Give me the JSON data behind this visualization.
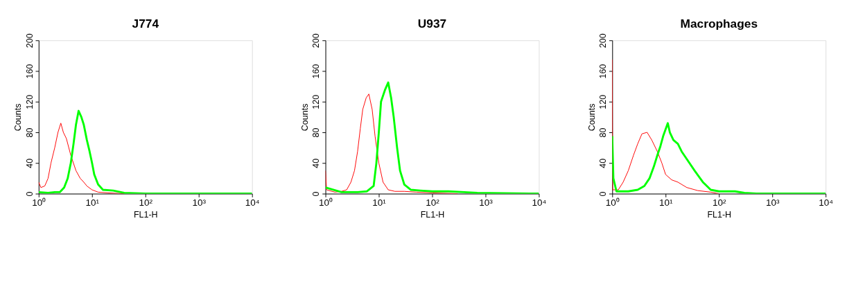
{
  "chart_data": [
    {
      "type": "line",
      "title": "J774",
      "xlabel": "FL1-H",
      "ylabel": "Counts",
      "log": "x",
      "grid": false,
      "marker": "none",
      "line_style": "solid",
      "xlim": [
        1,
        10000
      ],
      "xticks": [
        {
          "value": 1,
          "label": "10⁰"
        },
        {
          "value": 10,
          "label": "10¹"
        },
        {
          "value": 100,
          "label": "10²"
        },
        {
          "value": 1000,
          "label": "10³"
        },
        {
          "value": 10000,
          "label": "10⁴"
        }
      ],
      "ylim": [
        0,
        200
      ],
      "yticks": [
        0,
        40,
        80,
        120,
        160,
        200
      ],
      "series": [
        {
          "color": "#ff0000",
          "x": [
            1,
            1.1,
            1.3,
            1.5,
            1.7,
            2,
            2.3,
            2.6,
            2.9,
            3.3,
            4,
            5,
            6,
            7,
            8,
            10,
            13,
            20,
            40
          ],
          "values": [
            15,
            8,
            10,
            20,
            40,
            60,
            80,
            92,
            80,
            72,
            50,
            30,
            20,
            15,
            10,
            5,
            2,
            1,
            0
          ]
        },
        {
          "color": "#00ff00",
          "x": [
            1,
            1.5,
            2,
            2.5,
            3,
            3.5,
            4,
            4.5,
            5,
            5.6,
            6.3,
            7,
            8,
            9,
            10,
            11,
            13,
            16,
            25,
            40,
            100,
            1000,
            10000
          ],
          "values": [
            2,
            1,
            2,
            2,
            8,
            20,
            40,
            65,
            90,
            108,
            100,
            90,
            70,
            55,
            40,
            25,
            12,
            5,
            4,
            1,
            0,
            0,
            0
          ]
        }
      ]
    },
    {
      "type": "line",
      "title": "U937",
      "xlabel": "FL1-H",
      "ylabel": "Counts",
      "log": "x",
      "grid": false,
      "marker": "none",
      "line_style": "solid",
      "xlim": [
        1,
        10000
      ],
      "xticks": [
        {
          "value": 1,
          "label": "10⁰"
        },
        {
          "value": 10,
          "label": "10¹"
        },
        {
          "value": 100,
          "label": "10²"
        },
        {
          "value": 1000,
          "label": "10³"
        },
        {
          "value": 10000,
          "label": "10⁴"
        }
      ],
      "ylim": [
        0,
        200
      ],
      "yticks": [
        0,
        40,
        80,
        120,
        160,
        200
      ],
      "series": [
        {
          "color": "#ff0000",
          "x": [
            1,
            1.05,
            1.5,
            2,
            2.5,
            3,
            3.5,
            4,
            4.5,
            5,
            5.8,
            6.5,
            7.5,
            8.5,
            10,
            12,
            15,
            20,
            30,
            50,
            100,
            300
          ],
          "values": [
            30,
            5,
            2,
            3,
            5,
            15,
            30,
            55,
            85,
            110,
            125,
            130,
            110,
            75,
            40,
            15,
            5,
            3,
            3,
            2,
            1,
            0
          ]
        },
        {
          "color": "#00ff00",
          "x": [
            1,
            2,
            4,
            6,
            8,
            9,
            10,
            11,
            13,
            15,
            17,
            19,
            22,
            25,
            30,
            40,
            60,
            100,
            200,
            400,
            700,
            10000
          ],
          "values": [
            8,
            2,
            2,
            3,
            10,
            40,
            80,
            120,
            135,
            145,
            125,
            100,
            60,
            30,
            12,
            5,
            4,
            3,
            3,
            2,
            1,
            0
          ]
        }
      ]
    },
    {
      "type": "line",
      "title": "Macrophages",
      "xlabel": "FL1-H",
      "ylabel": "Counts",
      "log": "x",
      "grid": false,
      "marker": "none",
      "line_style": "solid",
      "xlim": [
        1,
        10000
      ],
      "xticks": [
        {
          "value": 1,
          "label": "10⁰"
        },
        {
          "value": 10,
          "label": "10¹"
        },
        {
          "value": 100,
          "label": "10²"
        },
        {
          "value": 1000,
          "label": "10³"
        },
        {
          "value": 10000,
          "label": "10⁴"
        }
      ],
      "ylim": [
        0,
        200
      ],
      "yticks": [
        0,
        40,
        80,
        120,
        160,
        200
      ],
      "series": [
        {
          "color": "#ff0000",
          "x": [
            1,
            1.02,
            1.3,
            1.6,
            2,
            2.5,
            3,
            3.6,
            4.5,
            5.5,
            7,
            8.5,
            10,
            13,
            17,
            25,
            40,
            70,
            100
          ],
          "values": [
            175,
            5,
            5,
            15,
            30,
            50,
            65,
            78,
            80,
            70,
            55,
            40,
            25,
            18,
            15,
            8,
            4,
            2,
            0
          ]
        },
        {
          "color": "#00ff00",
          "x": [
            1,
            1.05,
            1.2,
            2,
            3,
            4,
            5,
            6,
            7,
            8,
            9,
            11,
            12,
            14,
            17,
            20,
            25,
            35,
            50,
            70,
            100,
            200,
            300,
            500,
            10000
          ],
          "values": [
            75,
            20,
            3,
            3,
            5,
            10,
            20,
            35,
            50,
            62,
            75,
            92,
            80,
            70,
            65,
            55,
            45,
            30,
            15,
            5,
            3,
            3,
            1,
            0,
            0
          ]
        }
      ]
    }
  ]
}
